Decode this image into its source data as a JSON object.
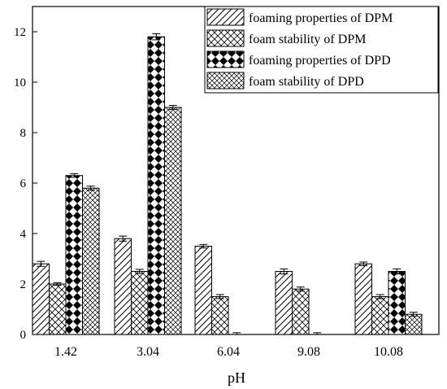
{
  "chart_data": {
    "type": "bar",
    "title": "",
    "xlabel": "pH",
    "ylabel": "",
    "categories": [
      "1.42",
      "3.04",
      "6.04",
      "9.08",
      "10.08"
    ],
    "ylim": [
      0,
      13
    ],
    "yticks": [
      0,
      2,
      4,
      6,
      8,
      10,
      12
    ],
    "grid": false,
    "legend_position": "top-right",
    "series": [
      {
        "name": "foaming properties of DPM",
        "pattern": "diagonal-hatch",
        "values": [
          2.8,
          3.8,
          3.5,
          2.5,
          2.8
        ],
        "errors": [
          0.1,
          0.1,
          0.07,
          0.1,
          0.07
        ]
      },
      {
        "name": "foam stability of DPM",
        "pattern": "cross-hatch",
        "values": [
          2.0,
          2.5,
          1.5,
          1.8,
          1.5
        ],
        "errors": [
          0.05,
          0.08,
          0.08,
          0.08,
          0.08
        ]
      },
      {
        "name": "foaming properties of DPD",
        "pattern": "checkerboard",
        "values": [
          6.3,
          11.8,
          0.0,
          0.0,
          2.5
        ],
        "errors": [
          0.07,
          0.12,
          0.07,
          0.07,
          0.1
        ]
      },
      {
        "name": "foam stability of DPD",
        "pattern": "fine-cross-hatch",
        "values": [
          5.8,
          9.0,
          null,
          null,
          0.8
        ],
        "errors": [
          0.08,
          0.08,
          null,
          null,
          0.08
        ]
      }
    ]
  }
}
